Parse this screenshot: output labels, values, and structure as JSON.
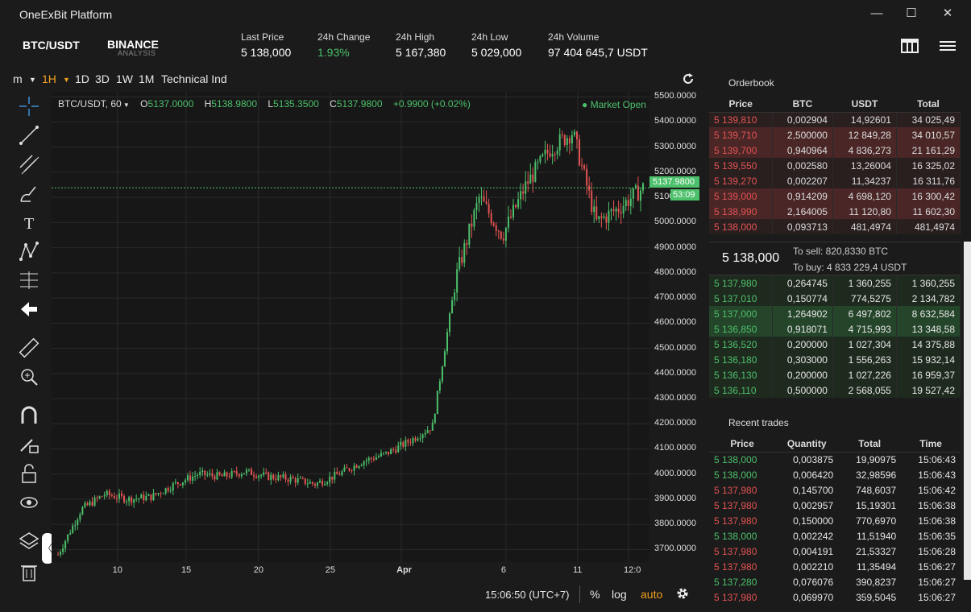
{
  "app": {
    "title": "OneExBit Platform"
  },
  "window_controls": {
    "minimize": "—",
    "maximize": "☐",
    "close": "✕"
  },
  "header": {
    "pair": "BTC/USDT",
    "exchange": "BINANCE",
    "exchange_sub": "ANALYSIS",
    "stats": [
      {
        "label": "Last Price",
        "value": "5 138,000"
      },
      {
        "label": "24h Change",
        "value": "1.93%"
      },
      {
        "label": "24h High",
        "value": "5 167,380"
      },
      {
        "label": "24h Low",
        "value": "5 029,000"
      },
      {
        "label": "24h Volume",
        "value": "97 404 645,7 USDT"
      }
    ]
  },
  "toolbar": {
    "m": "m",
    "timeframes": [
      "1H",
      "1D",
      "3D",
      "1W",
      "1M"
    ],
    "indicators": "Technical Ind"
  },
  "chart": {
    "symbol": "BTC/USDT, 60",
    "ohlc": {
      "O": "5137.0000",
      "H": "5138.9800",
      "L": "5135.3500",
      "C": "5137.9800",
      "change": "+0.9900 (+0.02%)"
    },
    "market_status": "Market Open",
    "price_tag": "5137.9800",
    "timer_tag": "53:09",
    "y_ticks": [
      "5500.0000",
      "5400.0000",
      "5300.0000",
      "5200.0000",
      "5100.0000",
      "5000.0000",
      "4900.0000",
      "4800.0000",
      "4700.0000",
      "4600.0000",
      "4500.0000",
      "4400.0000",
      "4300.0000",
      "4200.0000",
      "4100.0000",
      "4000.0000",
      "3900.0000",
      "3800.0000",
      "3700.0000"
    ],
    "x_ticks": [
      "10",
      "15",
      "20",
      "25",
      "Apr",
      "6",
      "11",
      "12:0"
    ],
    "time": "15:06:50 (UTC+7)",
    "percent": "%",
    "log": "log",
    "auto": "auto"
  },
  "chart_data": {
    "type": "line",
    "title": "",
    "xlabel": "",
    "ylabel": "",
    "ylim": [
      3650,
      5520
    ],
    "series": [
      {
        "name": "",
        "x": [
          0,
          4,
          8,
          12,
          16,
          20,
          24,
          28,
          32,
          36,
          40,
          44,
          48,
          52,
          56,
          60,
          64,
          68,
          72,
          76,
          80,
          84,
          88,
          92,
          96,
          100
        ],
        "values": [
          3680,
          3860,
          3920,
          3900,
          3910,
          3960,
          4000,
          3990,
          4010,
          3990,
          3980,
          3960,
          4000,
          4050,
          4080,
          4130,
          4190,
          4780,
          5100,
          4950,
          5150,
          5290,
          5360,
          5000,
          5060,
          5138
        ]
      }
    ]
  },
  "orderbook": {
    "title": "Orderbook",
    "headers": [
      "Price",
      "BTC",
      "USDT",
      "Total"
    ],
    "asks": [
      [
        "5 139,810",
        "0,002904",
        "14,92601",
        "34 025,49"
      ],
      [
        "5 139,710",
        "2,500000",
        "12 849,28",
        "34 010,57"
      ],
      [
        "5 139,700",
        "0,940964",
        "4 836,273",
        "21 161,29"
      ],
      [
        "5 139,550",
        "0,002580",
        "13,26004",
        "16 325,02"
      ],
      [
        "5 139,270",
        "0,002207",
        "11,34237",
        "16 311,76"
      ],
      [
        "5 139,000",
        "0,914209",
        "4 698,120",
        "16 300,42"
      ],
      [
        "5 138,990",
        "2,164005",
        "11 120,80",
        "11 602,30"
      ],
      [
        "5 138,000",
        "0,093713",
        "481,4974",
        "481,4974"
      ]
    ],
    "mid_price": "5 138,000",
    "to_sell": "To sell: 820,8330 BTC",
    "to_buy": "To buy: 4 833 229,4 USDT",
    "bids": [
      [
        "5 137,980",
        "0,264745",
        "1 360,255",
        "1 360,255"
      ],
      [
        "5 137,010",
        "0,150774",
        "774,5275",
        "2 134,782"
      ],
      [
        "5 137,000",
        "1,264902",
        "6 497,802",
        "8 632,584"
      ],
      [
        "5 136,850",
        "0,918071",
        "4 715,993",
        "13 348,58"
      ],
      [
        "5 136,520",
        "0,200000",
        "1 027,304",
        "14 375,88"
      ],
      [
        "5 136,180",
        "0,303000",
        "1 556,263",
        "15 932,14"
      ],
      [
        "5 136,130",
        "0,200000",
        "1 027,226",
        "16 959,37"
      ],
      [
        "5 136,110",
        "0,500000",
        "2 568,055",
        "19 527,42"
      ]
    ]
  },
  "trades": {
    "title": "Recent trades",
    "headers": [
      "Price",
      "Quantity",
      "Total",
      "Time"
    ],
    "rows": [
      [
        "5 138,000",
        "0,003875",
        "19,90975",
        "15:06:43",
        "buy"
      ],
      [
        "5 138,000",
        "0,006420",
        "32,98596",
        "15:06:43",
        "buy"
      ],
      [
        "5 137,980",
        "0,145700",
        "748,6037",
        "15:06:42",
        "sell"
      ],
      [
        "5 137,980",
        "0,002957",
        "15,19301",
        "15:06:38",
        "sell"
      ],
      [
        "5 137,980",
        "0,150000",
        "770,6970",
        "15:06:38",
        "sell"
      ],
      [
        "5 138,000",
        "0,002242",
        "11,51940",
        "15:06:35",
        "buy"
      ],
      [
        "5 137,980",
        "0,004191",
        "21,53327",
        "15:06:28",
        "sell"
      ],
      [
        "5 137,980",
        "0,002210",
        "11,35494",
        "15:06:27",
        "sell"
      ],
      [
        "5 137,280",
        "0,076076",
        "390,8237",
        "15:06:27",
        "buy"
      ],
      [
        "5 137,980",
        "0,069970",
        "359,5045",
        "15:06:27",
        "sell"
      ]
    ]
  },
  "colors": {
    "up": "#4cc06a",
    "down": "#e55353",
    "accent": "#f0a020",
    "bg": "#1b1b1b"
  }
}
